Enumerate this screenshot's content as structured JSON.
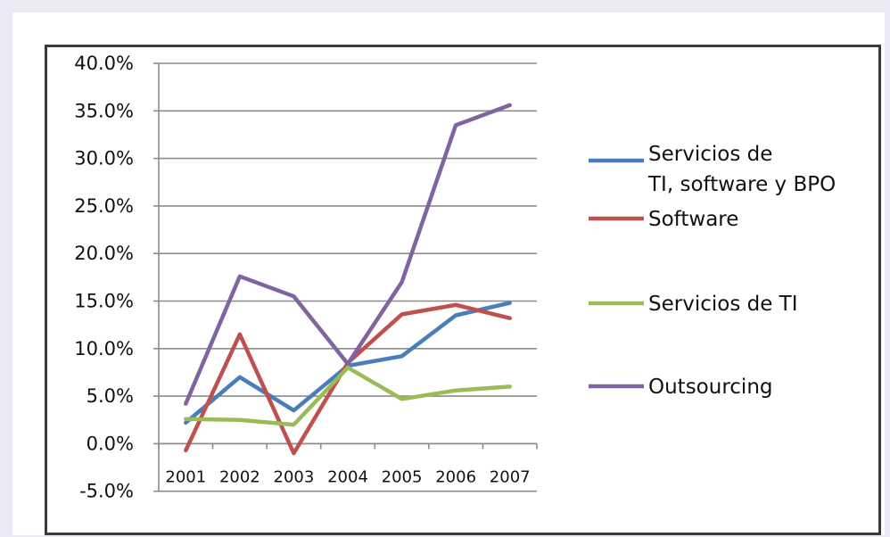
{
  "chart_data": {
    "type": "line",
    "title": "",
    "xlabel": "",
    "ylabel": "",
    "categories": [
      "2001",
      "2002",
      "2003",
      "2004",
      "2005",
      "2006",
      "2007"
    ],
    "ylim": [
      -5.0,
      40.0
    ],
    "y_ticks": [
      "40.0%",
      "35.0%",
      "30.0%",
      "25.0%",
      "20.0%",
      "15.0%",
      "10.0%",
      "5.0%",
      "0.0%",
      "-5.0%"
    ],
    "grid": true,
    "legend_position": "right",
    "series": [
      {
        "name": "Servicios de TI, software y BPO",
        "legend_lines": [
          "Servicios de",
          "TI, software y BPO"
        ],
        "color": "#4a7ebb",
        "values": [
          2.2,
          7.0,
          3.5,
          8.2,
          9.2,
          13.5,
          14.8
        ]
      },
      {
        "name": "Software",
        "legend_lines": [
          "Software"
        ],
        "color": "#c0504d",
        "values": [
          -0.7,
          11.5,
          -1.0,
          8.5,
          13.6,
          14.6,
          13.2
        ]
      },
      {
        "name": "Servicios de TI",
        "legend_lines": [
          "Servicios de TI"
        ],
        "color": "#9bbb59",
        "values": [
          2.6,
          2.5,
          2.0,
          8.0,
          4.7,
          5.6,
          6.0
        ]
      },
      {
        "name": "Outsourcing",
        "legend_lines": [
          "Outsourcing"
        ],
        "color": "#8064a2",
        "values": [
          4.2,
          17.6,
          15.5,
          8.4,
          17.0,
          33.5,
          35.6
        ]
      }
    ]
  }
}
